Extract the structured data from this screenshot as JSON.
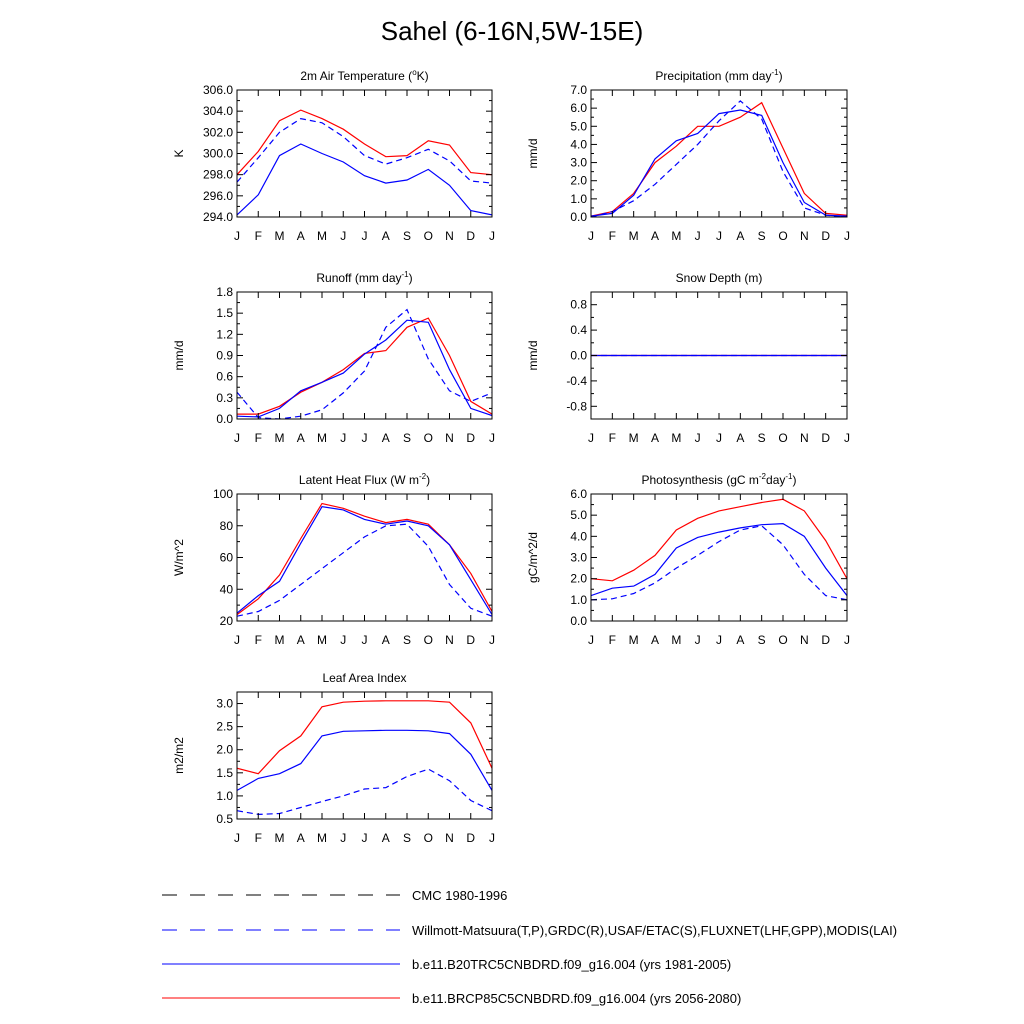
{
  "page_title": "Sahel (6-16N,5W-15E)",
  "month_labels": [
    "J",
    "F",
    "M",
    "A",
    "M",
    "J",
    "J",
    "A",
    "S",
    "O",
    "N",
    "D",
    "J"
  ],
  "colors": {
    "red": "#ff0000",
    "blue": "#0000ff",
    "black": "#000000"
  },
  "legend": [
    {
      "label": "CMC 1980-1996",
      "color": "#000000",
      "dash": "dashed"
    },
    {
      "label": "Willmott-Matsuura(T,P),GRDC(R),USAF/ETAC(S),FLUXNET(LHF,GPP),MODIS(LAI)",
      "color": "#0000ff",
      "dash": "dashed"
    },
    {
      "label": "b.e11.B20TRC5CNBDRD.f09_g16.004 (yrs 1981-2005)",
      "color": "#0000ff",
      "dash": "solid"
    },
    {
      "label": "b.e11.BRCP85C5CNBDRD.f09_g16.004 (yrs 2056-2080)",
      "color": "#ff0000",
      "dash": "solid"
    }
  ],
  "chart_data": [
    {
      "type": "line",
      "title": "2m Air Temperature (°K)",
      "ylabel": "K",
      "ylim": [
        294,
        306
      ],
      "yticks": [
        294,
        296,
        298,
        300,
        302,
        304,
        306
      ],
      "ytick_labels": [
        "294.0",
        "296.0",
        "298.0",
        "300.0",
        "302.0",
        "304.0",
        "306.0"
      ],
      "series": [
        {
          "name": "b.e11.BRCP85C5CNBDRD.f09_g16.004 (yrs 2056-2080)",
          "color": "#ff0000",
          "dash": "solid",
          "values": [
            298.0,
            300.2,
            303.1,
            304.1,
            303.3,
            302.3,
            300.9,
            299.7,
            299.8,
            301.2,
            300.8,
            298.2,
            298.0
          ]
        },
        {
          "name": "Willmott-Matsuura(T,P),GRDC(R),USAF/ETAC(S),FLUXNET(LHF,GPP),MODIS(LAI)",
          "color": "#0000ff",
          "dash": "dashed",
          "values": [
            297.3,
            299.6,
            302.0,
            303.3,
            302.9,
            301.6,
            299.8,
            299.0,
            299.6,
            300.4,
            299.3,
            297.4,
            297.2
          ]
        },
        {
          "name": "b.e11.B20TRC5CNBDRD.f09_g16.004 (yrs 1981-2005)",
          "color": "#0000ff",
          "dash": "solid",
          "values": [
            294.2,
            296.1,
            299.8,
            300.9,
            300.0,
            299.2,
            297.9,
            297.2,
            297.5,
            298.5,
            297.0,
            294.6,
            294.2
          ]
        }
      ]
    },
    {
      "type": "line",
      "title": "Precipitation (mm day-1)",
      "title_base": "Precipitation (mm day",
      "title_sup": "-1",
      "title_end": ")",
      "ylabel": "mm/d",
      "ylim": [
        0,
        7
      ],
      "yticks": [
        0,
        1,
        2,
        3,
        4,
        5,
        6,
        7
      ],
      "ytick_labels": [
        "0.0",
        "1.0",
        "2.0",
        "3.0",
        "4.0",
        "5.0",
        "6.0",
        "7.0"
      ],
      "series": [
        {
          "name": "b.e11.BRCP85C5CNBDRD.f09_g16.004 (yrs 2056-2080)",
          "color": "#ff0000",
          "dash": "solid",
          "values": [
            0.05,
            0.3,
            1.3,
            3.0,
            3.9,
            5.0,
            5.0,
            5.5,
            6.3,
            3.8,
            1.3,
            0.2,
            0.1
          ]
        },
        {
          "name": "Willmott-Matsuura(T,P),GRDC(R),USAF/ETAC(S),FLUXNET(LHF,GPP),MODIS(LAI)",
          "color": "#0000ff",
          "dash": "dashed",
          "values": [
            0.0,
            0.3,
            0.9,
            1.8,
            2.9,
            4.0,
            5.3,
            6.4,
            5.4,
            2.5,
            0.5,
            0.1,
            0.0
          ]
        },
        {
          "name": "b.e11.B20TRC5CNBDRD.f09_g16.004 (yrs 1981-2005)",
          "color": "#0000ff",
          "dash": "solid",
          "values": [
            0.05,
            0.2,
            1.2,
            3.2,
            4.2,
            4.6,
            5.7,
            5.9,
            5.6,
            3.0,
            0.8,
            0.1,
            0.05
          ]
        }
      ]
    },
    {
      "type": "line",
      "title": "Runoff (mm day-1)",
      "title_base": "Runoff (mm day",
      "title_sup": "-1",
      "title_end": ")",
      "ylabel": "mm/d",
      "ylim": [
        0,
        1.8
      ],
      "yticks": [
        0,
        0.3,
        0.6,
        0.9,
        1.2,
        1.5,
        1.8
      ],
      "ytick_labels": [
        "0.0",
        "0.3",
        "0.6",
        "0.9",
        "1.2",
        "1.5",
        "1.8"
      ],
      "series": [
        {
          "name": "b.e11.BRCP85C5CNBDRD.f09_g16.004 (yrs 2056-2080)",
          "color": "#ff0000",
          "dash": "solid",
          "values": [
            0.07,
            0.07,
            0.18,
            0.38,
            0.52,
            0.7,
            0.93,
            0.97,
            1.3,
            1.43,
            0.9,
            0.25,
            0.07
          ]
        },
        {
          "name": "Willmott-Matsuura(T,P),GRDC(R),USAF/ETAC(S),FLUXNET(LHF,GPP),MODIS(LAI)",
          "color": "#0000ff",
          "dash": "dashed",
          "values": [
            0.38,
            0.02,
            0.0,
            0.04,
            0.13,
            0.37,
            0.68,
            1.3,
            1.55,
            0.85,
            0.4,
            0.25,
            0.37
          ]
        },
        {
          "name": "b.e11.B20TRC5CNBDRD.f09_g16.004 (yrs 1981-2005)",
          "color": "#0000ff",
          "dash": "solid",
          "values": [
            0.04,
            0.03,
            0.15,
            0.4,
            0.52,
            0.65,
            0.92,
            1.12,
            1.4,
            1.37,
            0.7,
            0.15,
            0.05
          ]
        }
      ]
    },
    {
      "type": "line",
      "title": "Snow Depth (m)",
      "ylabel": "mm/d",
      "ylim": [
        -1,
        1
      ],
      "yticks": [
        -0.8,
        -0.4,
        0,
        0.4,
        0.8
      ],
      "ytick_labels": [
        "-0.8",
        "-0.4",
        "0.0",
        "0.4",
        "0.8"
      ],
      "series": [
        {
          "name": "b.e11.BRCP85C5CNBDRD.f09_g16.004 (yrs 2056-2080)",
          "color": "#ff0000",
          "dash": "solid",
          "values": [
            0,
            0,
            0,
            0,
            0,
            0,
            0,
            0,
            0,
            0,
            0,
            0,
            0
          ]
        },
        {
          "name": "b.e11.B20TRC5CNBDRD.f09_g16.004 (yrs 1981-2005)",
          "color": "#0000ff",
          "dash": "solid",
          "values": [
            0,
            0,
            0,
            0,
            0,
            0,
            0,
            0,
            0,
            0,
            0,
            0,
            0
          ]
        },
        {
          "name": "Willmott-Matsuura(T,P),GRDC(R),USAF/ETAC(S),FLUXNET(LHF,GPP),MODIS(LAI)",
          "color": "#0000ff",
          "dash": "dashed",
          "values": [
            0,
            0,
            0,
            0,
            0,
            0,
            0,
            0,
            0,
            0,
            0,
            0,
            0
          ]
        }
      ]
    },
    {
      "type": "line",
      "title": "Latent Heat Flux (W m-2)",
      "title_base": "Latent Heat Flux (W m",
      "title_sup": "-2",
      "title_end": ")",
      "ylabel": "W/m^2",
      "ylim": [
        20,
        100
      ],
      "yticks": [
        20,
        40,
        60,
        80,
        100
      ],
      "ytick_labels": [
        "20",
        "40",
        "60",
        "80",
        "100"
      ],
      "series": [
        {
          "name": "b.e11.BRCP85C5CNBDRD.f09_g16.004 (yrs 2056-2080)",
          "color": "#ff0000",
          "dash": "solid",
          "values": [
            24,
            34,
            49,
            72,
            94,
            91,
            86,
            82,
            84,
            81,
            68,
            50,
            26
          ]
        },
        {
          "name": "Willmott-Matsuura(T,P),GRDC(R),USAF/ETAC(S),FLUXNET(LHF,GPP),MODIS(LAI)",
          "color": "#0000ff",
          "dash": "dashed",
          "values": [
            23,
            26,
            33,
            43,
            53,
            63,
            73,
            80,
            81,
            67,
            43,
            28,
            23
          ]
        },
        {
          "name": "b.e11.B20TRC5CNBDRD.f09_g16.004 (yrs 1981-2005)",
          "color": "#0000ff",
          "dash": "solid",
          "values": [
            25,
            36,
            45,
            69,
            92,
            90,
            84,
            81,
            83,
            80,
            68,
            46,
            24
          ]
        }
      ]
    },
    {
      "type": "line",
      "title": "Photosynthesis (gC m-2day-1)",
      "title_base": "Photosynthesis (gC m",
      "title_sup": "-2",
      "title_mid": "day",
      "title_sup2": "-1",
      "title_end": ")",
      "ylabel": "gC/m^2/d",
      "ylim": [
        0,
        6
      ],
      "yticks": [
        0,
        1,
        2,
        3,
        4,
        5,
        6
      ],
      "ytick_labels": [
        "0.0",
        "1.0",
        "2.0",
        "3.0",
        "4.0",
        "5.0",
        "6.0"
      ],
      "series": [
        {
          "name": "b.e11.BRCP85C5CNBDRD.f09_g16.004 (yrs 2056-2080)",
          "color": "#ff0000",
          "dash": "solid",
          "values": [
            2.0,
            1.9,
            2.4,
            3.1,
            4.3,
            4.85,
            5.2,
            5.4,
            5.6,
            5.75,
            5.2,
            3.8,
            2.0
          ]
        },
        {
          "name": "b.e11.B20TRC5CNBDRD.f09_g16.004 (yrs 1981-2005)",
          "color": "#0000ff",
          "dash": "solid",
          "values": [
            1.2,
            1.55,
            1.65,
            2.2,
            3.45,
            3.95,
            4.2,
            4.4,
            4.55,
            4.6,
            4.0,
            2.5,
            1.2
          ]
        },
        {
          "name": "Willmott-Matsuura(T,P),GRDC(R),USAF/ETAC(S),FLUXNET(LHF,GPP),MODIS(LAI)",
          "color": "#0000ff",
          "dash": "dashed",
          "values": [
            1.0,
            1.05,
            1.3,
            1.8,
            2.5,
            3.1,
            3.75,
            4.3,
            4.5,
            3.6,
            2.2,
            1.2,
            1.0
          ]
        }
      ]
    },
    {
      "type": "line",
      "title": "Leaf Area Index",
      "ylabel": "m2/m2",
      "ylim": [
        0.5,
        3.25
      ],
      "yticks": [
        0.5,
        1.0,
        1.5,
        2.0,
        2.5,
        3.0
      ],
      "ytick_labels": [
        "0.5",
        "1.0",
        "1.5",
        "2.0",
        "2.5",
        "3.0"
      ],
      "series": [
        {
          "name": "b.e11.BRCP85C5CNBDRD.f09_g16.004 (yrs 2056-2080)",
          "color": "#ff0000",
          "dash": "solid",
          "values": [
            1.6,
            1.48,
            1.98,
            2.3,
            2.93,
            3.03,
            3.05,
            3.06,
            3.06,
            3.06,
            3.03,
            2.58,
            1.6
          ]
        },
        {
          "name": "b.e11.B20TRC5CNBDRD.f09_g16.004 (yrs 1981-2005)",
          "color": "#0000ff",
          "dash": "solid",
          "values": [
            1.12,
            1.38,
            1.48,
            1.7,
            2.3,
            2.4,
            2.41,
            2.42,
            2.42,
            2.41,
            2.35,
            1.9,
            1.12
          ]
        },
        {
          "name": "Willmott-Matsuura(T,P),GRDC(R),USAF/ETAC(S),FLUXNET(LHF,GPP),MODIS(LAI)",
          "color": "#0000ff",
          "dash": "dashed",
          "values": [
            0.68,
            0.6,
            0.62,
            0.75,
            0.88,
            1.0,
            1.15,
            1.18,
            1.42,
            1.58,
            1.33,
            0.9,
            0.68
          ]
        }
      ]
    }
  ]
}
